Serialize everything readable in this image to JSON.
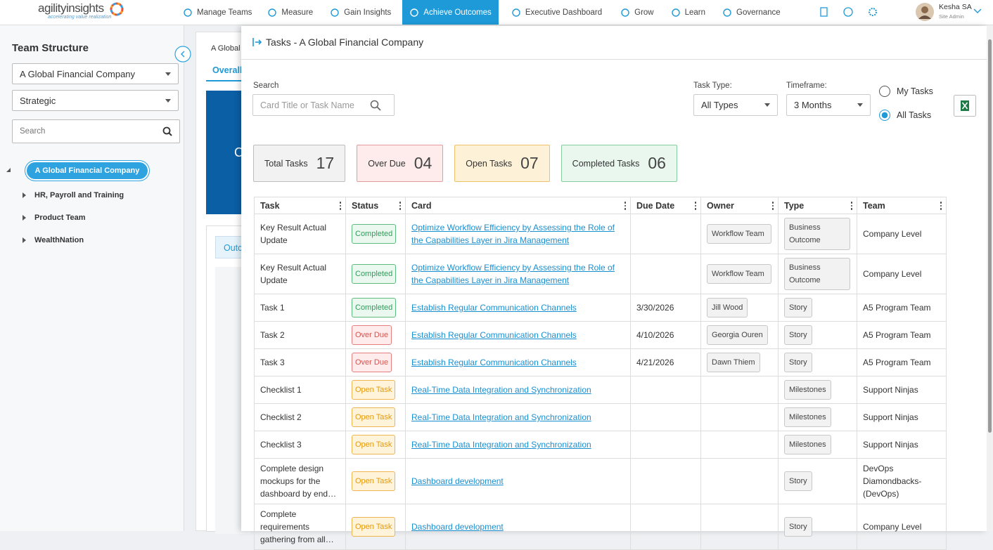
{
  "header": {
    "logo": "agilityinsights",
    "tagline": "accelerating value realization",
    "nav": [
      "Manage Teams",
      "Measure",
      "Gain Insights",
      "Achieve Outcomes",
      "Executive Dashboard",
      "Grow",
      "Learn",
      "Governance"
    ],
    "active_nav": "Achieve Outcomes",
    "user": {
      "name": "Kesha SA",
      "role": "Site Admin"
    }
  },
  "sidebar": {
    "title": "Team Structure",
    "org_select": "A Global Financial Company",
    "level_select": "Strategic",
    "search_placeholder": "Search",
    "tree": {
      "root": "A Global Financial Company",
      "children": [
        "HR, Payroll and Training",
        "Product Team",
        "WealthNation"
      ]
    }
  },
  "background": {
    "breadcrumb": "A Global",
    "tab": "Overall",
    "banner_letter": "C",
    "sub_tab": "Outc"
  },
  "panel": {
    "title": "Tasks - A Global Financial Company",
    "search_label": "Search",
    "search_placeholder": "Card Title or Task Name",
    "task_type_label": "Task Type:",
    "task_type": "All Types",
    "timeframe_label": "Timeframe:",
    "timeframe": "3 Months",
    "radio": {
      "options": [
        "My Tasks",
        "All Tasks"
      ],
      "selected": "All Tasks"
    },
    "summary": [
      {
        "label": "Total Tasks",
        "value": "17"
      },
      {
        "label": "Over Due",
        "value": "04"
      },
      {
        "label": "Open Tasks",
        "value": "07"
      },
      {
        "label": "Completed Tasks",
        "value": "06"
      }
    ],
    "table": {
      "columns": [
        "Task",
        "Status",
        "Card",
        "Due Date",
        "Owner",
        "Type",
        "Team"
      ],
      "rows": [
        {
          "task": "Key Result Actual Update",
          "status": "Completed",
          "card": "Optimize Workflow Efficiency by Assessing the Role of the Capabilities Layer in Jira Management",
          "owner": "Workflow Team",
          "type": "Business Outcome",
          "team": "Company Level"
        },
        {
          "task": "Key Result Actual Update",
          "status": "Completed",
          "card": "Optimize Workflow Efficiency by Assessing the Role of the Capabilities Layer in Jira Management",
          "owner": "Workflow Team",
          "type": "Business Outcome",
          "team": "Company Level"
        },
        {
          "task": "Task 1",
          "status": "Completed",
          "card": "Establish Regular Communication Channels",
          "due_date": "3/30/2026",
          "owner": "Jill Wood",
          "type": "Story",
          "team": "A5 Program Team"
        },
        {
          "task": "Task 2",
          "status": "Over Due",
          "card": "Establish Regular Communication Channels",
          "due_date": "4/10/2026",
          "owner": "Georgia Ouren",
          "type": "Story",
          "team": "A5 Program Team"
        },
        {
          "task": "Task 3",
          "status": "Over Due",
          "card": "Establish Regular Communication Channels",
          "due_date": "4/21/2026",
          "owner": "Dawn Thiem",
          "type": "Story",
          "team": "A5 Program Team"
        },
        {
          "task": "Checklist 1",
          "status": "Open Task",
          "card": "Real-Time Data Integration and Synchronization",
          "type": "Milestones",
          "team": "Support Ninjas"
        },
        {
          "task": "Checklist 2",
          "status": "Open Task",
          "card": "Real-Time Data Integration and Synchronization",
          "type": "Milestones",
          "team": "Support Ninjas"
        },
        {
          "task": "Checklist 3",
          "status": "Open Task",
          "card": "Real-Time Data Integration and Synchronization",
          "type": "Milestones",
          "team": "Support Ninjas"
        },
        {
          "task": "Complete design mockups for the dashboard by end…",
          "status": "Open Task",
          "card": "Dashboard development",
          "type": "Story",
          "team": "DevOps Diamondbacks-(DevOps)"
        },
        {
          "task": "Complete requirements gathering from all…",
          "status": "Open Task",
          "card": "Dashboard development",
          "type": "Story",
          "team": "Company Level"
        }
      ]
    }
  }
}
